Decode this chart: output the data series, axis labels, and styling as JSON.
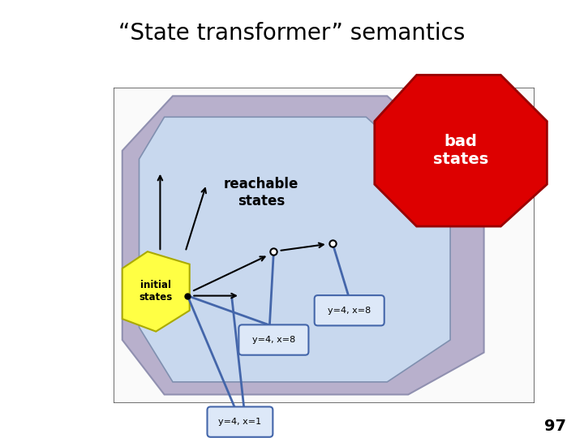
{
  "title": "“State transformer” semantics",
  "title_fontsize": 20,
  "page_number": "97",
  "bg_color": "#ffffff",
  "outer_oct_color": "#b8b0cc",
  "outer_oct_edge": "#9090b0",
  "inner_blob_color": "#c8d8ee",
  "inner_blob_edge": "#8090b0",
  "bad_states_color": "#dd0000",
  "bad_states_edge": "#990000",
  "initial_states_color": "#ffff44",
  "initial_states_edge": "#aaaa00",
  "box_face": "#dde8f8",
  "box_edge": "#4466aa",
  "blue_line": "#4466aa",
  "label_bad": "bad\nstates",
  "label_reachable": "reachable\nstates",
  "label_initial": "initial\nstates",
  "label_y4x8_left": "y=4, x=8",
  "label_y4x8_right": "y=4, x=8",
  "label_y4x1": "y=4, x=1"
}
